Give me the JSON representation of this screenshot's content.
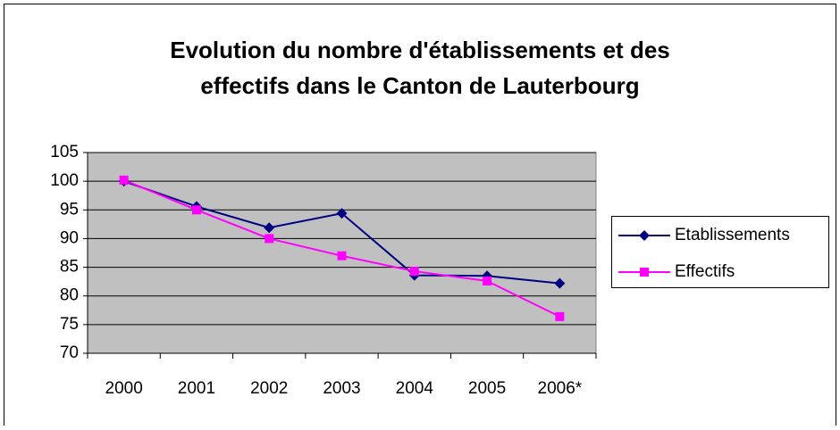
{
  "chart_data": {
    "type": "line",
    "title": [
      "Evolution du nombre d'établissements et des",
      "effectifs dans le Canton de Lauterbourg"
    ],
    "categories": [
      "2000",
      "2001",
      "2002",
      "2003",
      "2004",
      "2005",
      "2006*"
    ],
    "series": [
      {
        "name": "Etablissements",
        "color": "#000080",
        "marker": "diamond",
        "values": [
          100,
          95.6,
          91.9,
          94.4,
          83.6,
          83.5,
          82.2
        ]
      },
      {
        "name": "Effectifs",
        "color": "#ff00ff",
        "marker": "square",
        "values": [
          100.2,
          95,
          90,
          87,
          84.3,
          82.6,
          76.4
        ]
      }
    ],
    "ylim": [
      70,
      105
    ],
    "yticks": [
      70,
      75,
      80,
      85,
      90,
      95,
      100,
      105
    ],
    "grid": true,
    "plot_background": "#c0c0c0",
    "legend": "right"
  }
}
